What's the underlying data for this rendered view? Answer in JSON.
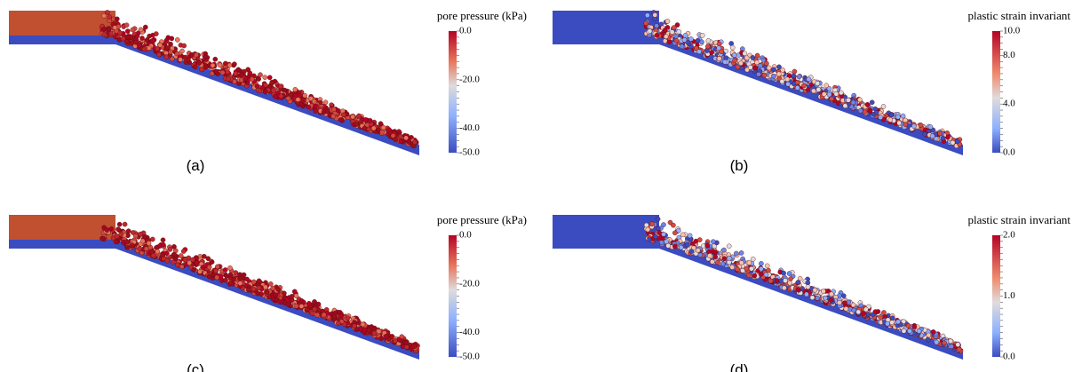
{
  "panels": [
    {
      "label": "(a)",
      "colorbar": {
        "title": "pore pressure  (kPa)",
        "ticks": [
          "0.0",
          "-20.0",
          "-40.0",
          "-50.0"
        ]
      }
    },
    {
      "label": "(b)",
      "colorbar": {
        "title": "plastic strain invariant",
        "ticks": [
          "10.0",
          "8.0",
          "4.0",
          "0.0"
        ]
      }
    },
    {
      "label": "(c)",
      "colorbar": {
        "title": "pore pressure  (kPa)",
        "ticks": [
          "0.0",
          "-20.0",
          "-40.0",
          "-50.0"
        ]
      }
    },
    {
      "label": "(d)",
      "colorbar": {
        "title": "plastic strain invariant",
        "ticks": [
          "2.0",
          "1.0",
          "0.0"
        ]
      }
    }
  ]
}
